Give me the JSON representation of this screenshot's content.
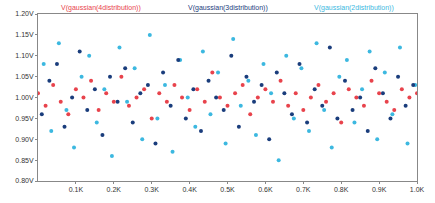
{
  "chart_data": {
    "type": "scatter",
    "grid": false,
    "xlim": [
      0,
      1000
    ],
    "xticks": [
      {
        "value": 100,
        "label": "0.1K"
      },
      {
        "value": 200,
        "label": "0.2K"
      },
      {
        "value": 300,
        "label": "0.3K"
      },
      {
        "value": 400,
        "label": "0.4K"
      },
      {
        "value": 500,
        "label": "0.5K"
      },
      {
        "value": 600,
        "label": "0.6K"
      },
      {
        "value": 700,
        "label": "0.7K"
      },
      {
        "value": 800,
        "label": "0.8K"
      },
      {
        "value": 900,
        "label": "0.9K"
      },
      {
        "value": 1000,
        "label": "1.0K"
      }
    ],
    "ylim": [
      0.8,
      1.2
    ],
    "yticks": [
      {
        "value": 0.8,
        "label": "0.80V"
      },
      {
        "value": 0.85,
        "label": "0.85V"
      },
      {
        "value": 0.9,
        "label": "0.90V"
      },
      {
        "value": 0.95,
        "label": "0.95V"
      },
      {
        "value": 1.0,
        "label": "1.00V"
      },
      {
        "value": 1.05,
        "label": "1.05V"
      },
      {
        "value": 1.1,
        "label": "1.10V"
      },
      {
        "value": 1.15,
        "label": "1.15V"
      },
      {
        "value": 1.2,
        "label": "1.20V"
      }
    ],
    "series": [
      {
        "name": "V(gaussian(4distribution))",
        "color": "#e8434c",
        "marker": "circle",
        "x": [
          0,
          20,
          40,
          60,
          80,
          100,
          120,
          140,
          160,
          180,
          200,
          220,
          240,
          260,
          280,
          300,
          320,
          340,
          360,
          380,
          400,
          420,
          440,
          460,
          480,
          500,
          520,
          540,
          560,
          580,
          600,
          620,
          640,
          660,
          680,
          700,
          720,
          740,
          760,
          780,
          800,
          820,
          840,
          860,
          880,
          900,
          920,
          940,
          960,
          980,
          1000
        ],
        "values": [
          1.01,
          0.98,
          1.03,
          0.99,
          0.96,
          1.02,
          1.0,
          1.04,
          0.97,
          1.01,
          0.99,
          1.05,
          0.98,
          1.0,
          1.02,
          0.95,
          1.01,
          0.99,
          1.03,
          1.0,
          0.97,
          1.02,
          0.99,
          1.06,
          1.0,
          0.98,
          1.01,
          1.03,
          0.96,
          1.0,
          1.02,
          0.99,
          1.04,
          0.98,
          1.01,
          0.97,
          1.0,
          1.03,
          0.99,
          1.01,
          0.94,
          1.02,
          1.0,
          0.98,
          1.04,
          1.01,
          0.99,
          0.97,
          1.02,
          1.0,
          1.01
        ]
      },
      {
        "name": "V(gaussian(3distribution))",
        "color": "#1a3d7c",
        "marker": "circle",
        "x": [
          10,
          30,
          50,
          70,
          90,
          110,
          130,
          150,
          170,
          190,
          210,
          230,
          250,
          270,
          290,
          310,
          330,
          350,
          370,
          390,
          410,
          430,
          450,
          470,
          490,
          510,
          530,
          550,
          570,
          590,
          610,
          630,
          650,
          670,
          690,
          710,
          730,
          750,
          770,
          790,
          810,
          830,
          850,
          870,
          890,
          910,
          930,
          950,
          970,
          990
        ],
        "values": [
          0.96,
          1.04,
          1.08,
          0.93,
          1.0,
          1.11,
          0.97,
          1.02,
          0.91,
          1.05,
          0.99,
          1.07,
          0.94,
          1.01,
          1.03,
          0.89,
          1.06,
          0.98,
          1.09,
          0.95,
          1.02,
          0.92,
          1.04,
          1.0,
          0.97,
          1.1,
          0.93,
          1.05,
          0.99,
          1.03,
          0.9,
          1.06,
          1.01,
          0.96,
          1.08,
          0.94,
          1.02,
          0.98,
          1.12,
          0.95,
          1.04,
          0.97,
          1.0,
          0.92,
          1.07,
          1.01,
          0.95,
          1.05,
          0.98,
          1.03
        ]
      },
      {
        "name": "V(gaussian(2distribution))",
        "color": "#3cb8e0",
        "marker": "circle",
        "x": [
          15,
          35,
          55,
          75,
          95,
          115,
          135,
          155,
          175,
          195,
          215,
          235,
          255,
          275,
          295,
          315,
          335,
          355,
          375,
          395,
          415,
          435,
          455,
          475,
          495,
          515,
          535,
          555,
          575,
          595,
          615,
          635,
          655,
          675,
          695,
          715,
          735,
          755,
          775,
          795,
          815,
          835,
          855,
          875,
          895,
          915,
          935,
          955,
          975,
          995
        ],
        "values": [
          1.08,
          0.92,
          1.13,
          0.97,
          0.88,
          1.05,
          1.1,
          0.94,
          1.02,
          0.86,
          1.12,
          0.99,
          1.07,
          0.9,
          1.15,
          0.95,
          1.03,
          0.87,
          1.09,
          1.0,
          0.93,
          1.11,
          0.96,
          1.06,
          0.89,
          1.14,
          0.98,
          1.04,
          0.91,
          1.08,
          1.01,
          0.85,
          1.1,
          0.95,
          1.07,
          0.92,
          1.13,
          0.97,
          0.88,
          1.05,
          1.09,
          0.94,
          1.02,
          1.11,
          0.9,
          1.06,
          0.96,
          1.12,
          0.89,
          1.03
        ]
      }
    ]
  }
}
